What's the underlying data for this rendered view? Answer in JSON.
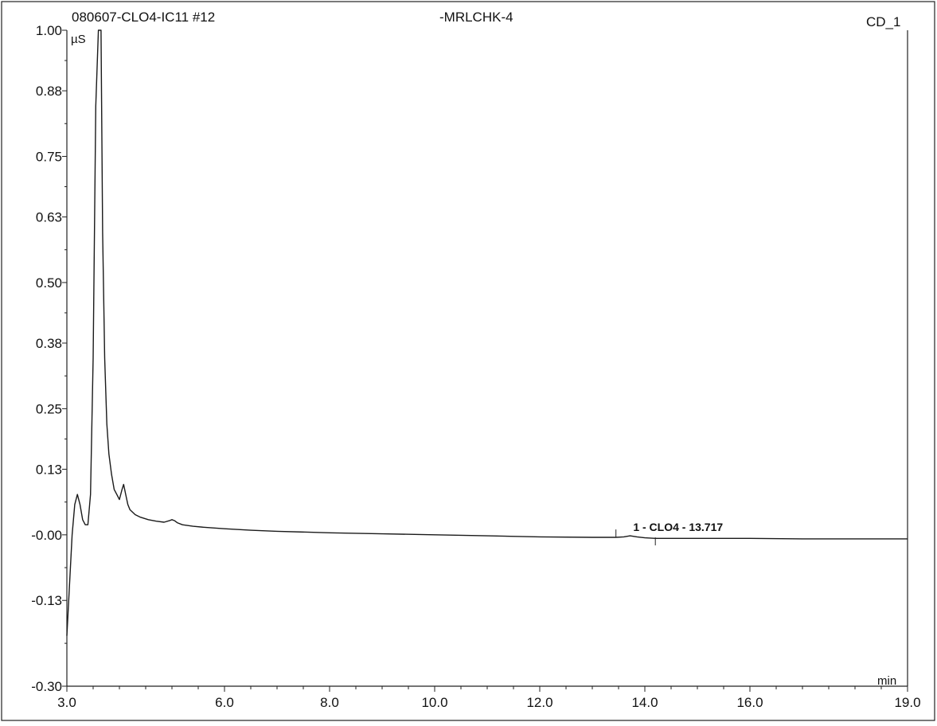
{
  "header": {
    "sample_title": "080607-CLO4-IC11 #12",
    "sample_name": "-MRLCHK-4",
    "channel": "CD_1"
  },
  "chart_data": {
    "type": "line",
    "title": "080607-CLO4-IC11 #12",
    "xlabel": "min",
    "ylabel": "µS",
    "xlim": [
      3.0,
      19.0
    ],
    "ylim": [
      -0.3,
      1.0
    ],
    "x_ticks": [
      "3.0",
      "6.0",
      "8.0",
      "10.0",
      "12.0",
      "14.0",
      "16.0",
      "19.0"
    ],
    "y_ticks": [
      "1.00",
      "0.88",
      "0.75",
      "0.63",
      "0.50",
      "0.38",
      "0.25",
      "0.13",
      "-0.00",
      "-0.13",
      "-0.30"
    ],
    "grid": false,
    "series": [
      {
        "x": [
          3.0,
          3.05,
          3.1,
          3.15,
          3.2,
          3.25,
          3.3,
          3.35,
          3.4,
          3.45,
          3.5,
          3.55,
          3.6,
          3.65,
          3.68,
          3.72,
          3.76,
          3.8,
          3.85,
          3.9,
          3.95,
          4.0,
          4.05,
          4.08,
          4.12,
          4.16,
          4.2,
          4.3,
          4.4,
          4.55,
          4.7,
          4.85,
          4.95,
          5.0,
          5.05,
          5.1,
          5.2,
          5.4,
          5.6,
          6.0,
          6.5,
          7.0,
          8.0,
          9.0,
          10.0,
          11.0,
          12.0,
          13.0,
          13.45,
          13.6,
          13.72,
          13.85,
          14.0,
          14.2,
          15.0,
          16.0,
          17.0,
          18.0,
          19.0
        ],
        "y": [
          -0.2,
          -0.1,
          0.0,
          0.06,
          0.08,
          0.06,
          0.03,
          0.02,
          0.02,
          0.08,
          0.35,
          0.85,
          1.0,
          1.0,
          0.6,
          0.35,
          0.22,
          0.16,
          0.12,
          0.09,
          0.08,
          0.07,
          0.09,
          0.1,
          0.08,
          0.06,
          0.05,
          0.04,
          0.035,
          0.03,
          0.027,
          0.025,
          0.028,
          0.03,
          0.028,
          0.024,
          0.02,
          0.017,
          0.015,
          0.012,
          0.009,
          0.007,
          0.004,
          0.002,
          0.0,
          -0.002,
          -0.004,
          -0.005,
          -0.005,
          -0.004,
          -0.002,
          -0.004,
          -0.006,
          -0.007,
          -0.007,
          -0.007,
          -0.008,
          -0.008,
          -0.008
        ]
      }
    ],
    "annotations": [
      {
        "text": "1 - CLO4 - 13.717",
        "x": 13.717,
        "y": -0.002,
        "baseline_start": 13.45,
        "baseline_end": 14.2
      }
    ]
  }
}
